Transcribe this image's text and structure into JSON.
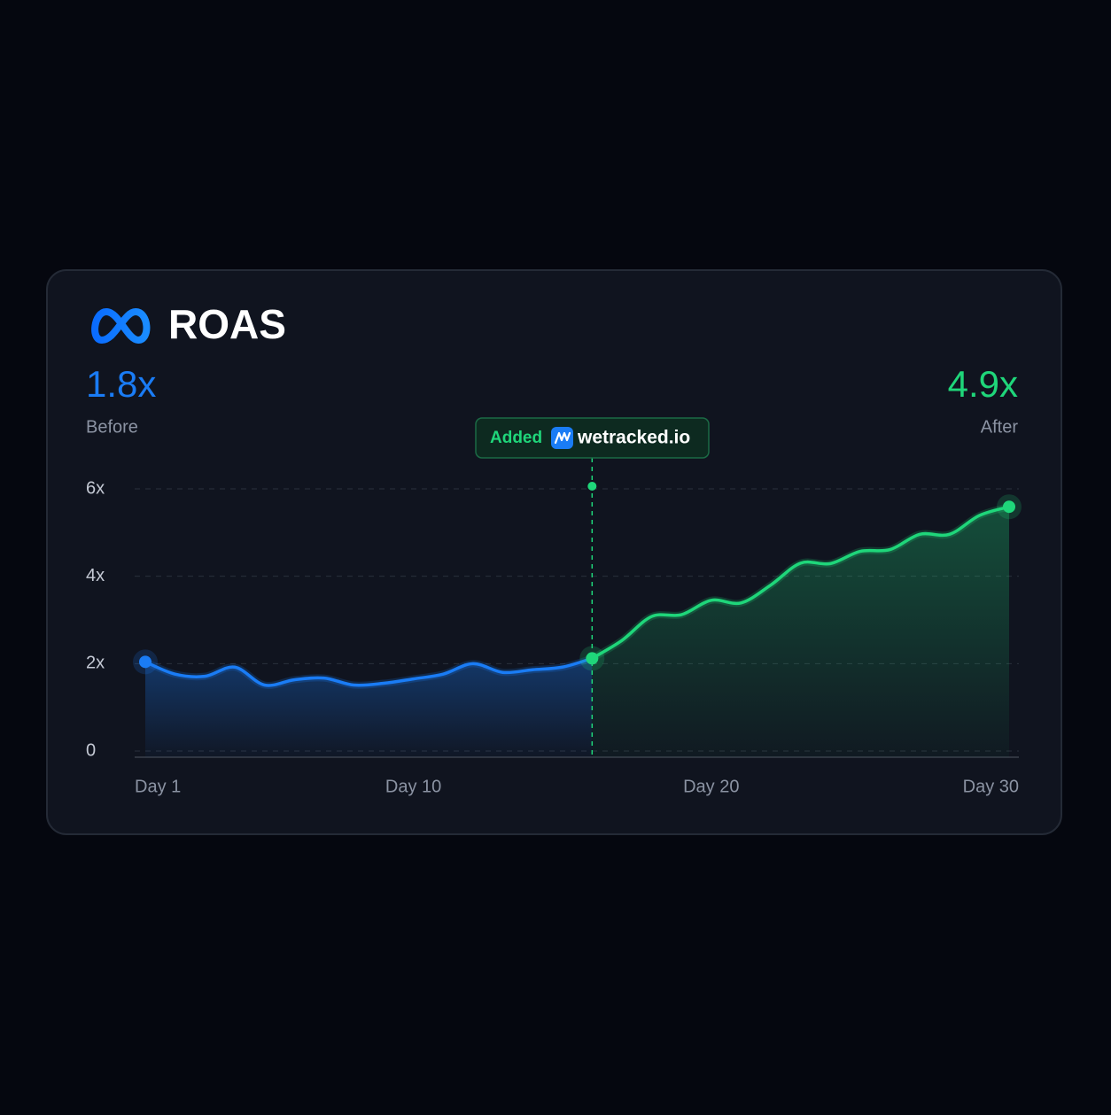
{
  "chart_data": {
    "type": "line",
    "title": "ROAS",
    "annotation": {
      "label": "Added",
      "brand": "wetracked.io",
      "x": 16
    },
    "series": [
      {
        "name": "Before",
        "summary": "1.8x",
        "color": "#1a7cf5",
        "x": [
          1,
          2,
          3,
          4,
          5,
          6,
          7,
          8,
          9,
          10,
          11,
          12,
          13,
          14,
          15,
          16
        ],
        "values": [
          2.04,
          1.76,
          1.71,
          1.92,
          1.51,
          1.63,
          1.67,
          1.51,
          1.55,
          1.65,
          1.76,
          2.0,
          1.8,
          1.86,
          1.92,
          2.12
        ]
      },
      {
        "name": "After",
        "summary": "4.9x",
        "color": "#1fd67a",
        "x": [
          16,
          17,
          18,
          19,
          20,
          21,
          22,
          23,
          24,
          25,
          26,
          27,
          28,
          29,
          30
        ],
        "values": [
          2.12,
          2.53,
          3.08,
          3.12,
          3.45,
          3.39,
          3.8,
          4.3,
          4.29,
          4.57,
          4.61,
          4.96,
          4.96,
          5.39,
          5.59
        ]
      }
    ],
    "xlim": [
      1,
      30
    ],
    "xticks": [
      {
        "value": 1,
        "label": "Day 1"
      },
      {
        "value": 10,
        "label": "Day 10"
      },
      {
        "value": 20,
        "label": "Day 20"
      },
      {
        "value": 30,
        "label": "Day 30"
      }
    ],
    "ylim": [
      0,
      6
    ],
    "yticks": [
      0,
      {
        "value": 2,
        "label": "2x"
      },
      {
        "value": 4,
        "label": "4x"
      },
      {
        "value": 6,
        "label": "6x"
      }
    ],
    "grid": true
  }
}
